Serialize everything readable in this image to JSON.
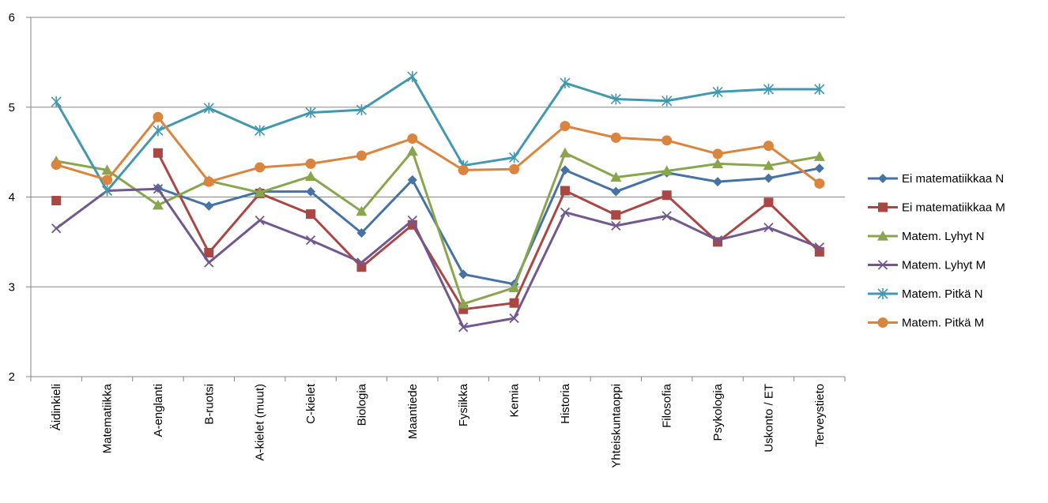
{
  "chart_data": {
    "type": "line",
    "title": "",
    "xlabel": "",
    "ylabel": "",
    "ylim": [
      2,
      6
    ],
    "yticks": [
      2,
      3,
      4,
      5,
      6
    ],
    "grid": true,
    "legend_position": "right",
    "categories": [
      "Äidinkieli",
      "Matematiikka",
      "A-englanti",
      "B-ruotsi",
      "A-kielet (muut)",
      "C-kielet",
      "Biologia",
      "Maantiede",
      "Fysiikka",
      "Kemia",
      "Historia",
      "Yhteiskuntaoppi",
      "Filosofia",
      "Psykologia",
      "Uskonto / ET",
      "Terveystieto"
    ],
    "series": [
      {
        "name": "Ei matematiikkaa N",
        "color": "#4572A7",
        "marker": "diamond",
        "values": [
          null,
          null,
          4.1,
          3.9,
          4.06,
          4.06,
          3.6,
          4.19,
          3.14,
          3.03,
          4.3,
          4.06,
          4.27,
          4.17,
          4.21,
          4.32
        ]
      },
      {
        "name": "Ei matematiikkaa M",
        "color": "#AA4643",
        "marker": "square",
        "values": [
          3.96,
          null,
          4.49,
          3.38,
          4.04,
          3.81,
          3.22,
          3.69,
          2.75,
          2.82,
          4.07,
          3.8,
          4.02,
          3.5,
          3.94,
          3.39
        ]
      },
      {
        "name": "Matem. Lyhyt N",
        "color": "#89A54E",
        "marker": "triangle",
        "values": [
          4.4,
          4.3,
          3.91,
          4.18,
          4.05,
          4.23,
          3.84,
          4.51,
          2.81,
          2.99,
          4.49,
          4.22,
          4.29,
          4.37,
          4.35,
          4.45
        ]
      },
      {
        "name": "Matem. Lyhyt M",
        "color": "#71588F",
        "marker": "x",
        "values": [
          3.65,
          4.07,
          4.09,
          3.27,
          3.74,
          3.52,
          3.27,
          3.74,
          2.55,
          2.65,
          3.83,
          3.68,
          3.79,
          3.52,
          3.66,
          3.44
        ]
      },
      {
        "name": "Matem. Pitkä N",
        "color": "#4198AF",
        "marker": "asterisk",
        "values": [
          5.06,
          4.07,
          4.74,
          4.99,
          4.74,
          4.94,
          4.97,
          5.34,
          4.35,
          4.44,
          5.27,
          5.09,
          5.07,
          5.17,
          5.2,
          5.2
        ]
      },
      {
        "name": "Matem. Pitkä M",
        "color": "#DB843D",
        "marker": "circle",
        "values": [
          4.36,
          4.19,
          4.89,
          4.17,
          4.33,
          4.37,
          4.46,
          4.65,
          4.3,
          4.31,
          4.79,
          4.66,
          4.63,
          4.48,
          4.57,
          4.15
        ]
      }
    ]
  }
}
